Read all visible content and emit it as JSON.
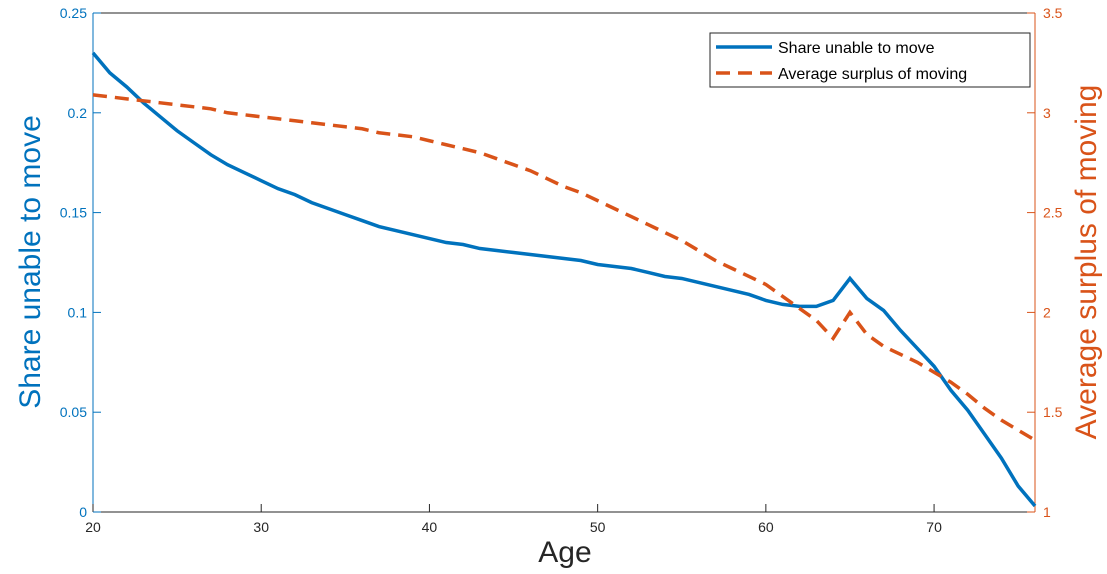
{
  "chart_data": {
    "type": "line",
    "xlabel": "Age",
    "ylabel": "Share unable to move",
    "y2label": "Average surplus of moving",
    "x": [
      20,
      21,
      22,
      23,
      24,
      25,
      26,
      27,
      28,
      29,
      30,
      31,
      32,
      33,
      34,
      35,
      36,
      37,
      38,
      39,
      40,
      41,
      42,
      43,
      44,
      45,
      46,
      47,
      48,
      49,
      50,
      51,
      52,
      53,
      54,
      55,
      56,
      57,
      58,
      59,
      60,
      61,
      62,
      63,
      64,
      65,
      66,
      67,
      68,
      69,
      70,
      71,
      72,
      73,
      74,
      75,
      76
    ],
    "xlim": [
      20,
      76
    ],
    "xticks": [
      20,
      30,
      40,
      50,
      60,
      70
    ],
    "ylim": [
      0,
      0.25
    ],
    "yticks": [
      0,
      0.05,
      0.1,
      0.15,
      0.2,
      0.25
    ],
    "y2lim": [
      1,
      3.5
    ],
    "y2ticks": [
      1,
      1.5,
      2,
      2.5,
      3,
      3.5
    ],
    "legend": "upper right",
    "series": [
      {
        "name": "Share unable to move",
        "color": "#0072bd",
        "style": "solid",
        "values": [
          0.23,
          0.22,
          0.213,
          0.205,
          0.198,
          0.191,
          0.185,
          0.179,
          0.174,
          0.17,
          0.166,
          0.162,
          0.159,
          0.155,
          0.152,
          0.149,
          0.146,
          0.143,
          0.141,
          0.139,
          0.137,
          0.135,
          0.134,
          0.132,
          0.131,
          0.13,
          0.129,
          0.128,
          0.127,
          0.126,
          0.124,
          0.123,
          0.122,
          0.12,
          0.118,
          0.117,
          0.115,
          0.113,
          0.111,
          0.109,
          0.106,
          0.104,
          0.103,
          0.103,
          0.106,
          0.117,
          0.107,
          0.101,
          0.091,
          0.082,
          0.073,
          0.061,
          0.051,
          0.039,
          0.027,
          0.013,
          0.003
        ]
      },
      {
        "name": "Average surplus of moving",
        "color": "#d95319",
        "style": "dashed",
        "axis": "y2",
        "values": [
          3.09,
          3.08,
          3.07,
          3.06,
          3.05,
          3.04,
          3.03,
          3.02,
          3.0,
          2.99,
          2.98,
          2.97,
          2.96,
          2.95,
          2.94,
          2.93,
          2.92,
          2.9,
          2.89,
          2.88,
          2.86,
          2.84,
          2.82,
          2.8,
          2.77,
          2.74,
          2.71,
          2.67,
          2.63,
          2.6,
          2.56,
          2.52,
          2.48,
          2.44,
          2.4,
          2.36,
          2.31,
          2.26,
          2.22,
          2.18,
          2.14,
          2.08,
          2.02,
          1.96,
          1.87,
          2.0,
          1.89,
          1.83,
          1.79,
          1.75,
          1.7,
          1.65,
          1.59,
          1.52,
          1.46,
          1.41,
          1.36
        ]
      }
    ]
  }
}
